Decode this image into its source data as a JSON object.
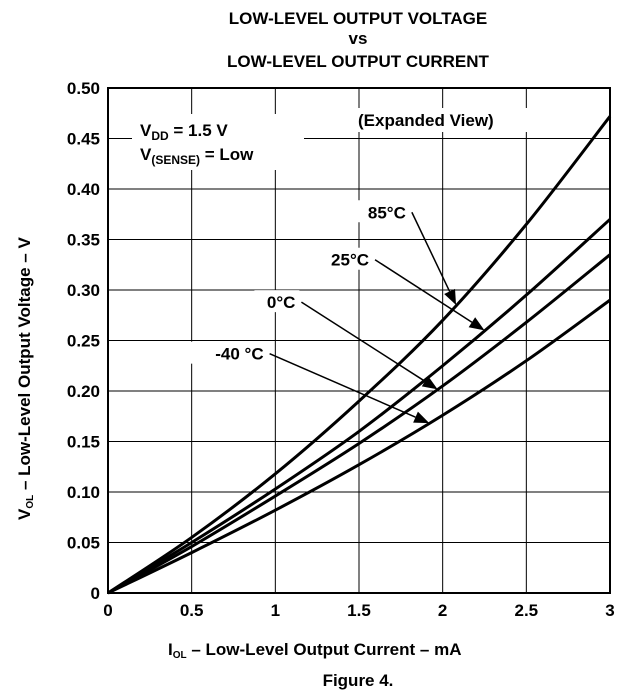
{
  "chart_data": {
    "type": "line",
    "title_lines": [
      "LOW-LEVEL OUTPUT VOLTAGE",
      "vs",
      "LOW-LEVEL OUTPUT CURRENT"
    ],
    "xlabel": {
      "main": "I",
      "sub": "OL",
      "rest": " – Low-Level Output Current – mA"
    },
    "ylabel": {
      "main": "V",
      "sub": "OL",
      "rest": " – Low-Level Output Voltage – V"
    },
    "xlim": [
      0,
      3
    ],
    "ylim": [
      0,
      0.5
    ],
    "x_ticks": [
      "0",
      "0.5",
      "1",
      "1.5",
      "2",
      "2.5",
      "3"
    ],
    "y_ticks": [
      "0",
      "0.05",
      "0.10",
      "0.15",
      "0.20",
      "0.25",
      "0.30",
      "0.35",
      "0.40",
      "0.45",
      "0.50"
    ],
    "grid": true,
    "caption": "Figure 4.",
    "conditions": {
      "vdd": {
        "main": "V",
        "sub": "DD",
        "rest": " = 1.5 V"
      },
      "vsense": {
        "main": "V",
        "sub": "(SENSE)",
        "rest": " = Low"
      }
    },
    "note": "(Expanded View)",
    "series": [
      {
        "name": "85°C",
        "x": [
          0,
          0.5,
          1,
          1.5,
          2,
          2.5,
          3
        ],
        "y": [
          0,
          0.055,
          0.118,
          0.19,
          0.27,
          0.365,
          0.472
        ]
      },
      {
        "name": "25°C",
        "x": [
          0,
          0.5,
          1,
          1.5,
          2,
          2.5,
          3
        ],
        "y": [
          0,
          0.05,
          0.103,
          0.16,
          0.225,
          0.295,
          0.37
        ]
      },
      {
        "name": "0°C",
        "x": [
          0,
          0.5,
          1,
          1.5,
          2,
          2.5,
          3
        ],
        "y": [
          0,
          0.046,
          0.096,
          0.148,
          0.205,
          0.268,
          0.335
        ]
      },
      {
        "name": "-40 °C",
        "x": [
          0,
          0.5,
          1,
          1.5,
          2,
          2.5,
          3
        ],
        "y": [
          0,
          0.04,
          0.082,
          0.127,
          0.176,
          0.23,
          0.29
        ]
      }
    ]
  }
}
